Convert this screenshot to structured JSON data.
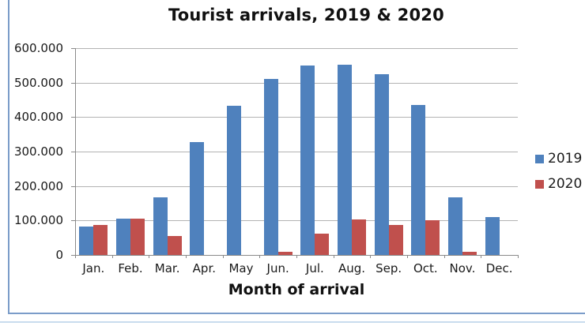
{
  "chart_data": {
    "type": "bar",
    "title": "Tourist arrivals, 2019 & 2020",
    "xlabel": "Month of arrival",
    "ylabel": "",
    "categories": [
      "Jan.",
      "Feb.",
      "Mar.",
      "Apr.",
      "May",
      "Jun.",
      "Jul.",
      "Aug.",
      "Sep.",
      "Oct.",
      "Nov.",
      "Dec."
    ],
    "series": [
      {
        "name": "2019",
        "color": "#4F81BD",
        "values": [
          82000,
          105000,
          168000,
          328000,
          432000,
          510000,
          550000,
          553000,
          524000,
          435000,
          168000,
          110000
        ]
      },
      {
        "name": "2020",
        "color": "#C0504D",
        "values": [
          86000,
          106000,
          55000,
          0,
          0,
          9000,
          63000,
          104000,
          87000,
          100000,
          9000,
          0
        ]
      }
    ],
    "ylim": [
      0,
      600000
    ],
    "yticks": [
      {
        "value": 0,
        "label": "0"
      },
      {
        "value": 100000,
        "label": "100.000"
      },
      {
        "value": 200000,
        "label": "200.000"
      },
      {
        "value": 300000,
        "label": "300.000"
      },
      {
        "value": 400000,
        "label": "400.000"
      },
      {
        "value": 500000,
        "label": "500.000"
      },
      {
        "value": 600000,
        "label": "600.000"
      }
    ],
    "grid": true,
    "legend_position": "right"
  },
  "frame": {
    "border_color": "#7b9cc9",
    "divider_color": "#c9dcee"
  }
}
